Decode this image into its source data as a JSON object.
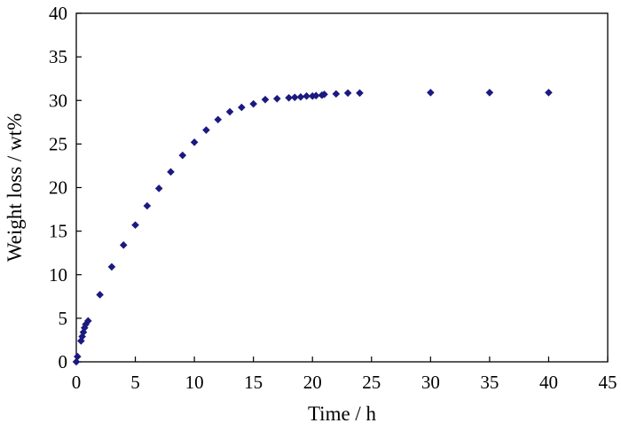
{
  "chart_data": {
    "type": "scatter",
    "xlabel": "Time / h",
    "ylabel": "Weight loss / wt%",
    "xlim": [
      0,
      45
    ],
    "ylim": [
      0,
      40
    ],
    "xticks": [
      0,
      5,
      10,
      15,
      20,
      25,
      30,
      35,
      40,
      45
    ],
    "yticks": [
      0,
      5,
      10,
      15,
      20,
      25,
      30,
      35,
      40
    ],
    "grid": false,
    "legend": "none",
    "marker": "diamond",
    "marker_color": "#1a1a80",
    "series": [
      {
        "points": [
          {
            "x": 0,
            "y": 0
          },
          {
            "x": 0.1,
            "y": 0.6
          },
          {
            "x": 0.4,
            "y": 2.4
          },
          {
            "x": 0.5,
            "y": 2.9
          },
          {
            "x": 0.6,
            "y": 3.4
          },
          {
            "x": 0.7,
            "y": 3.9
          },
          {
            "x": 0.8,
            "y": 4.3
          },
          {
            "x": 1,
            "y": 4.7
          },
          {
            "x": 2,
            "y": 7.7
          },
          {
            "x": 3,
            "y": 10.9
          },
          {
            "x": 4,
            "y": 13.4
          },
          {
            "x": 5,
            "y": 15.7
          },
          {
            "x": 6,
            "y": 17.9
          },
          {
            "x": 7,
            "y": 19.9
          },
          {
            "x": 8,
            "y": 21.8
          },
          {
            "x": 9,
            "y": 23.7
          },
          {
            "x": 10,
            "y": 25.2
          },
          {
            "x": 11,
            "y": 26.6
          },
          {
            "x": 12,
            "y": 27.8
          },
          {
            "x": 13,
            "y": 28.7
          },
          {
            "x": 14,
            "y": 29.2
          },
          {
            "x": 15,
            "y": 29.6
          },
          {
            "x": 16,
            "y": 30.1
          },
          {
            "x": 17,
            "y": 30.2
          },
          {
            "x": 18,
            "y": 30.3
          },
          {
            "x": 18.5,
            "y": 30.35
          },
          {
            "x": 19,
            "y": 30.4
          },
          {
            "x": 19.5,
            "y": 30.5
          },
          {
            "x": 20,
            "y": 30.5
          },
          {
            "x": 20.3,
            "y": 30.55
          },
          {
            "x": 20.8,
            "y": 30.6
          },
          {
            "x": 21,
            "y": 30.7
          },
          {
            "x": 22,
            "y": 30.75
          },
          {
            "x": 23,
            "y": 30.85
          },
          {
            "x": 24,
            "y": 30.85
          },
          {
            "x": 30,
            "y": 30.9
          },
          {
            "x": 35,
            "y": 30.9
          },
          {
            "x": 40,
            "y": 30.9
          }
        ]
      }
    ]
  }
}
